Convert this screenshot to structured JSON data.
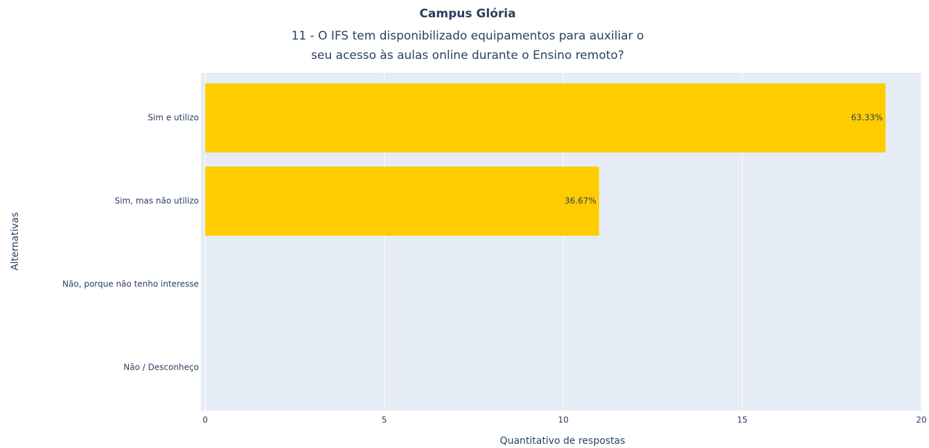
{
  "chart_data": {
    "type": "bar",
    "orientation": "horizontal",
    "title": "Campus Glória",
    "subtitle": [
      "11 - O IFS tem disponibilizado equipamentos para auxiliar o",
      "seu acesso às aulas online durante o Ensino remoto?"
    ],
    "x_label": "Quantitativo de respostas",
    "y_label": "Alternativas",
    "categories": [
      "Sim e utilizo",
      "Sim, mas não utilizo",
      "Não, porque não tenho interesse",
      "Não / Desconheço"
    ],
    "values": [
      19,
      11,
      0,
      0
    ],
    "value_labels": [
      "63.33%",
      "36.67%",
      null,
      null
    ],
    "color": "#ffcc00",
    "xlim": [
      -0.12,
      20
    ],
    "xticks": [
      0,
      5,
      10,
      15,
      20
    ],
    "grid": true
  }
}
